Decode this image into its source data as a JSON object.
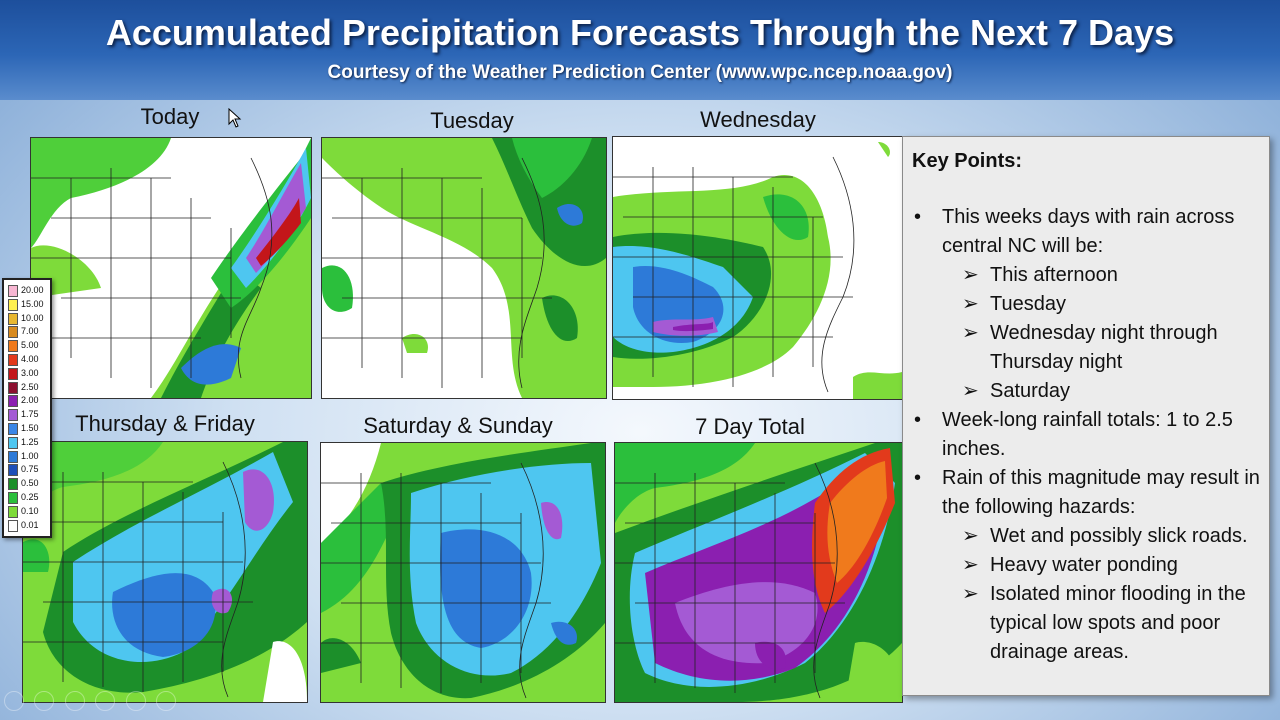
{
  "header": {
    "title": "Accumulated Precipitation Forecasts Through the Next 7 Days",
    "subtitle": "Courtesy of the Weather Prediction Center (www.wpc.ncep.noaa.gov)"
  },
  "panels": [
    {
      "label": "Today"
    },
    {
      "label": "Tuesday"
    },
    {
      "label": "Wednesday"
    },
    {
      "label": "Thursday & Friday"
    },
    {
      "label": "Saturday & Sunday"
    },
    {
      "label": "7 Day Total"
    }
  ],
  "legend": {
    "values": [
      "20.00",
      "15.00",
      "10.00",
      "7.00",
      "5.00",
      "4.00",
      "3.00",
      "2.50",
      "2.00",
      "1.75",
      "1.50",
      "1.25",
      "1.00",
      "0.75",
      "0.50",
      "0.25",
      "0.10",
      "0.01"
    ],
    "colors": [
      "#f7b6d2",
      "#fff04f",
      "#e8b730",
      "#d88a1e",
      "#f07a1c",
      "#e23a1c",
      "#c3161a",
      "#8c1030",
      "#8b1fb0",
      "#a45ad4",
      "#3a86e6",
      "#4ec6f0",
      "#2d7ad8",
      "#1e4fb8",
      "#1c8f2a",
      "#2bbf3c",
      "#7edb3a",
      "#ffffff"
    ]
  },
  "key_points": {
    "title": "Key Points:",
    "b1": "This weeks days with rain across central NC will be:",
    "b1_subs": [
      "This afternoon",
      "Tuesday",
      "Wednesday night through Thursday night",
      "Saturday"
    ],
    "b2": "Week-long rainfall totals: 1 to 2.5 inches.",
    "b3": "Rain of this magnitude may result in the following hazards:",
    "b3_subs": [
      "Wet and possibly slick roads.",
      "Heavy water ponding",
      "Isolated minor flooding in the typical low spots and poor drainage areas."
    ],
    "bullet_glyph": "•",
    "arrow_glyph": "➢"
  }
}
